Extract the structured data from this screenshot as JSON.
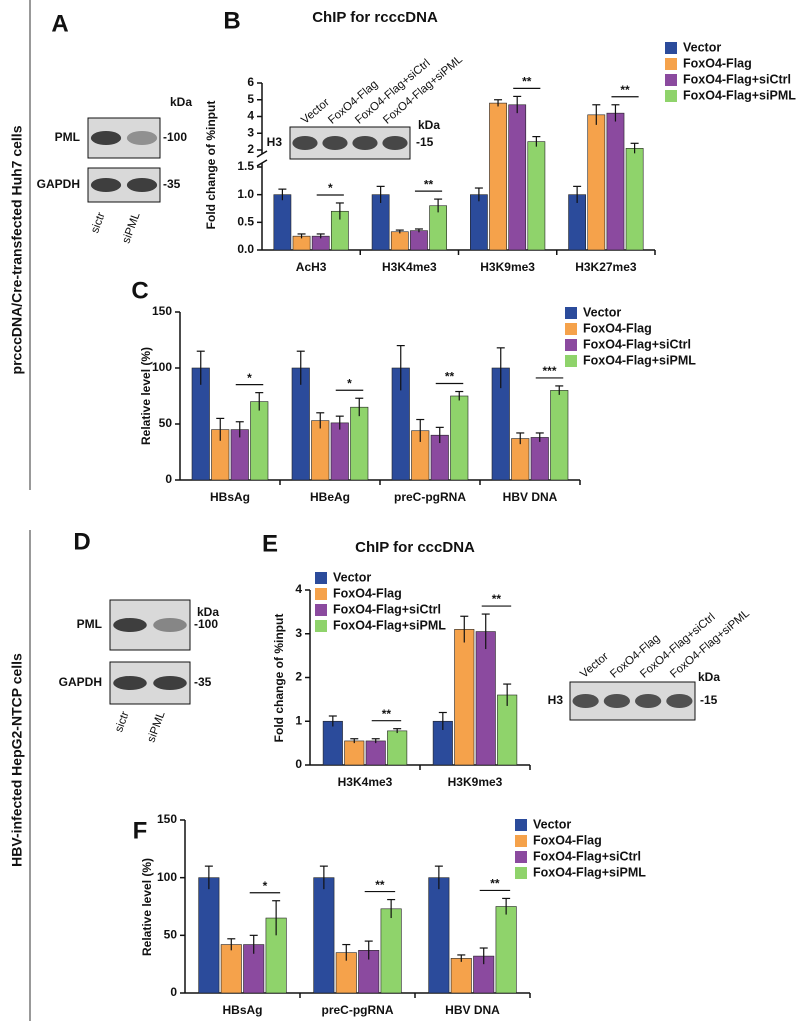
{
  "side_labels": [
    "prcccDNA/Cre-transfected Huh7 cells",
    "HBV-infected HepG2-NTCP cells"
  ],
  "blots": [
    {
      "panel": "A",
      "unit": "kDa",
      "lanes": [
        "sictr",
        "siPML"
      ],
      "rows": [
        {
          "name": "PML",
          "marker": "-100"
        },
        {
          "name": "GAPDH",
          "marker": "-35"
        }
      ]
    },
    {
      "unit": "kDa",
      "lanes": [
        "Vector",
        "FoxO4-Flag",
        "FoxO4-Flag+siCtrl",
        "FoxO4-Flag+siPML"
      ],
      "rows": [
        {
          "name": "H3",
          "marker": "-15"
        }
      ]
    },
    {
      "panel": "D",
      "unit": "kDa",
      "lanes": [
        "sictr",
        "siPML"
      ],
      "rows": [
        {
          "name": "PML",
          "marker": "-100"
        },
        {
          "name": "GAPDH",
          "marker": "-35"
        }
      ]
    },
    {
      "unit": "kDa",
      "lanes": [
        "Vector",
        "FoxO4-Flag",
        "FoxO4-Flag+siCtrl",
        "FoxO4-Flag+siPML"
      ],
      "rows": [
        {
          "name": "H3",
          "marker": "-15"
        }
      ]
    }
  ],
  "chart_data": [
    {
      "type": "bar",
      "panel": "B",
      "title": "ChIP for rcccDNA",
      "y_label": "Fold change of %input",
      "categories": [
        "AcH3",
        "H3K4me3",
        "H3K9me3",
        "H3K27me3"
      ],
      "series": [
        {
          "name": "Vector",
          "color": "#2b4b9b",
          "values": [
            1.0,
            1.0,
            1.0,
            1.0
          ],
          "errors": [
            0.1,
            0.15,
            0.12,
            0.15
          ]
        },
        {
          "name": "FoxO4-Flag",
          "color": "#f5a24b",
          "values": [
            0.25,
            0.33,
            4.8,
            4.1
          ],
          "errors": [
            0.04,
            0.03,
            0.2,
            0.6
          ]
        },
        {
          "name": "FoxO4-Flag+siCtrl",
          "color": "#8b4a9f",
          "values": [
            0.25,
            0.35,
            4.7,
            4.2
          ],
          "errors": [
            0.04,
            0.03,
            0.5,
            0.5
          ]
        },
        {
          "name": "FoxO4-Flag+siPML",
          "color": "#8fd36b",
          "values": [
            0.7,
            0.8,
            2.5,
            2.1
          ],
          "errors": [
            0.15,
            0.12,
            0.3,
            0.3
          ]
        }
      ],
      "significance": [
        "*",
        "**",
        "**",
        "**"
      ],
      "ylim": [
        0,
        6
      ],
      "ybreak": [
        1.5,
        2
      ],
      "yticks": [
        {
          "value": 0,
          "label": "0.0"
        },
        {
          "value": 0.5,
          "label": "0.5"
        },
        {
          "value": 1,
          "label": "1.0"
        },
        {
          "value": 1.5,
          "label": "1.5"
        },
        2,
        3,
        4,
        5,
        6
      ]
    },
    {
      "type": "bar",
      "panel": "C",
      "y_label": "Relative level (%)",
      "categories": [
        "HBsAg",
        "HBeAg",
        "preC-pgRNA",
        "HBV DNA"
      ],
      "series": [
        {
          "name": "Vector",
          "color": "#2b4b9b",
          "values": [
            100,
            100,
            100,
            100
          ],
          "errors": [
            15,
            15,
            20,
            18
          ]
        },
        {
          "name": "FoxO4-Flag",
          "color": "#f5a24b",
          "values": [
            45,
            53,
            44,
            37
          ],
          "errors": [
            10,
            7,
            10,
            5
          ]
        },
        {
          "name": "FoxO4-Flag+siCtrl",
          "color": "#8b4a9f",
          "values": [
            45,
            51,
            40,
            38
          ],
          "errors": [
            7,
            6,
            7,
            4
          ]
        },
        {
          "name": "FoxO4-Flag+siPML",
          "color": "#8fd36b",
          "values": [
            70,
            65,
            75,
            80
          ],
          "errors": [
            8,
            8,
            4,
            4
          ]
        }
      ],
      "significance": [
        "*",
        "*",
        "**",
        "***"
      ],
      "ylim": [
        0,
        150
      ],
      "yticks": [
        0,
        50,
        100,
        150
      ]
    },
    {
      "type": "bar",
      "panel": "E",
      "title": "ChIP for cccDNA",
      "y_label": "Fold change of %input",
      "categories": [
        "H3K4me3",
        "H3K9me3"
      ],
      "series": [
        {
          "name": "Vector",
          "color": "#2b4b9b",
          "values": [
            1.0,
            1.0
          ],
          "errors": [
            0.12,
            0.2
          ]
        },
        {
          "name": "FoxO4-Flag",
          "color": "#f5a24b",
          "values": [
            0.55,
            3.1
          ],
          "errors": [
            0.05,
            0.3
          ]
        },
        {
          "name": "FoxO4-Flag+siCtrl",
          "color": "#8b4a9f",
          "values": [
            0.55,
            3.05
          ],
          "errors": [
            0.05,
            0.4
          ]
        },
        {
          "name": "FoxO4-Flag+siPML",
          "color": "#8fd36b",
          "values": [
            0.78,
            1.6
          ],
          "errors": [
            0.05,
            0.25
          ]
        }
      ],
      "significance": [
        "**",
        "**"
      ],
      "ylim": [
        0,
        4
      ],
      "yticks": [
        0,
        1,
        2,
        3,
        4
      ]
    },
    {
      "type": "bar",
      "panel": "F",
      "y_label": "Relative level (%)",
      "categories": [
        "HBsAg",
        "preC-pgRNA",
        "HBV DNA"
      ],
      "series": [
        {
          "name": "Vector",
          "color": "#2b4b9b",
          "values": [
            100,
            100,
            100
          ],
          "errors": [
            10,
            10,
            10
          ]
        },
        {
          "name": "FoxO4-Flag",
          "color": "#f5a24b",
          "values": [
            42,
            35,
            30
          ],
          "errors": [
            5,
            7,
            3
          ]
        },
        {
          "name": "FoxO4-Flag+siCtrl",
          "color": "#8b4a9f",
          "values": [
            42,
            37,
            32
          ],
          "errors": [
            8,
            8,
            7
          ]
        },
        {
          "name": "FoxO4-Flag+siPML",
          "color": "#8fd36b",
          "values": [
            65,
            73,
            75
          ],
          "errors": [
            15,
            8,
            7
          ]
        }
      ],
      "significance": [
        "*",
        "**",
        "**"
      ],
      "ylim": [
        0,
        150
      ],
      "yticks": [
        0,
        50,
        100,
        150
      ]
    }
  ]
}
